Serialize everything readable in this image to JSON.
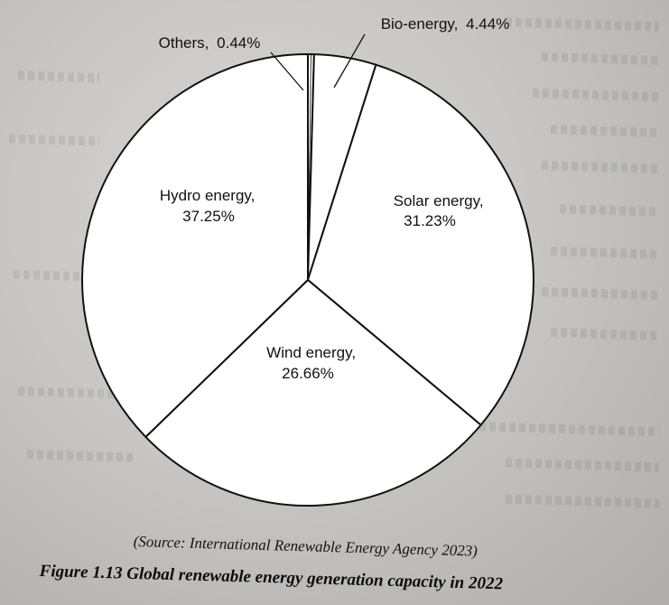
{
  "chart_data": {
    "type": "pie",
    "categories": [
      "Others",
      "Bio-energy",
      "Solar energy",
      "Wind energy",
      "Hydro energy"
    ],
    "values": [
      0.44,
      4.44,
      31.23,
      26.66,
      37.25
    ],
    "labels": [
      {
        "name": "Others,",
        "value": "0.44%"
      },
      {
        "name": "Bio-energy,",
        "value": "4.44%"
      },
      {
        "name": "Solar energy,",
        "value": "31.23%"
      },
      {
        "name": "Wind energy,",
        "value": "26.66%"
      },
      {
        "name": "Hydro energy,",
        "value": "37.25%"
      }
    ],
    "colors": {
      "slice_fill": "#ffffff",
      "outline": "#111111"
    },
    "legend": "none",
    "grid": false
  },
  "source": "(Source: International Renewable Energy Agency 2023)",
  "caption": "Figure 1.13 Global renewable energy generation capacity in 2022"
}
